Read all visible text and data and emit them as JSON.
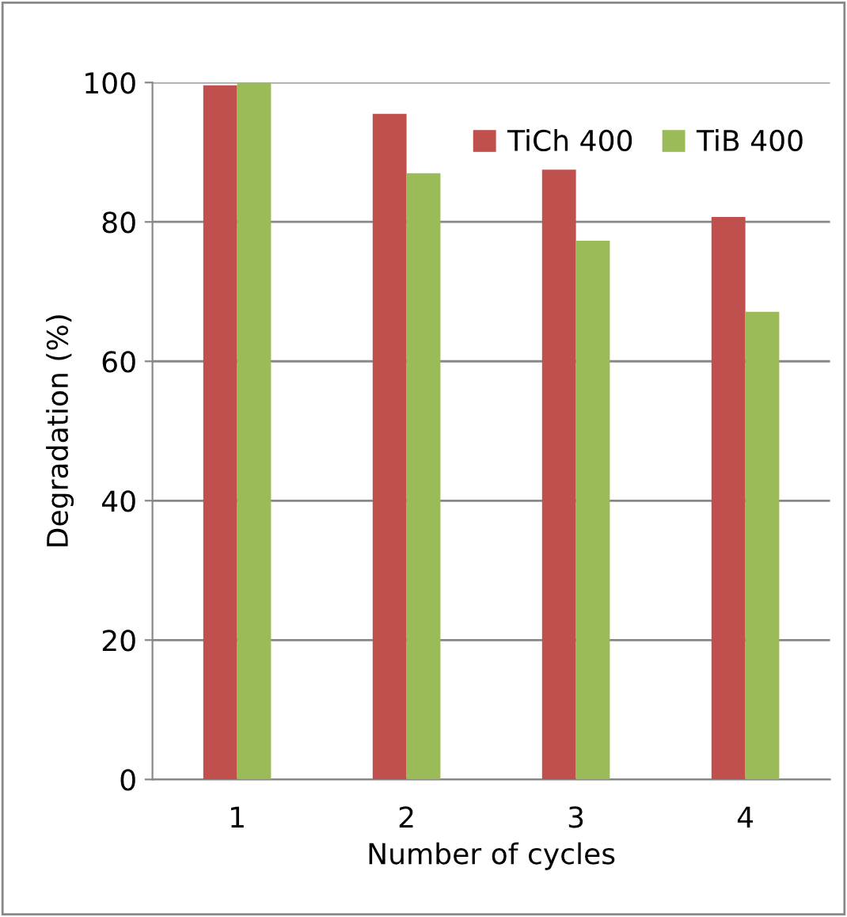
{
  "chart_data": {
    "type": "bar",
    "xlabel": "Number of cycles",
    "ylabel": "Degradation (%)",
    "categories": [
      "1",
      "2",
      "3",
      "4"
    ],
    "series": [
      {
        "name": "TiCh 400",
        "color": "#c0504d",
        "values": [
          99.6,
          95.5,
          87.5,
          80.7
        ]
      },
      {
        "name": "TiB 400",
        "color": "#9bbb59",
        "values": [
          100,
          87.0,
          77.3,
          67.1
        ]
      }
    ],
    "ylim": [
      0,
      100
    ],
    "yticks": [
      0,
      20,
      40,
      60,
      80,
      100
    ],
    "grid": "y",
    "legend": "top right"
  }
}
